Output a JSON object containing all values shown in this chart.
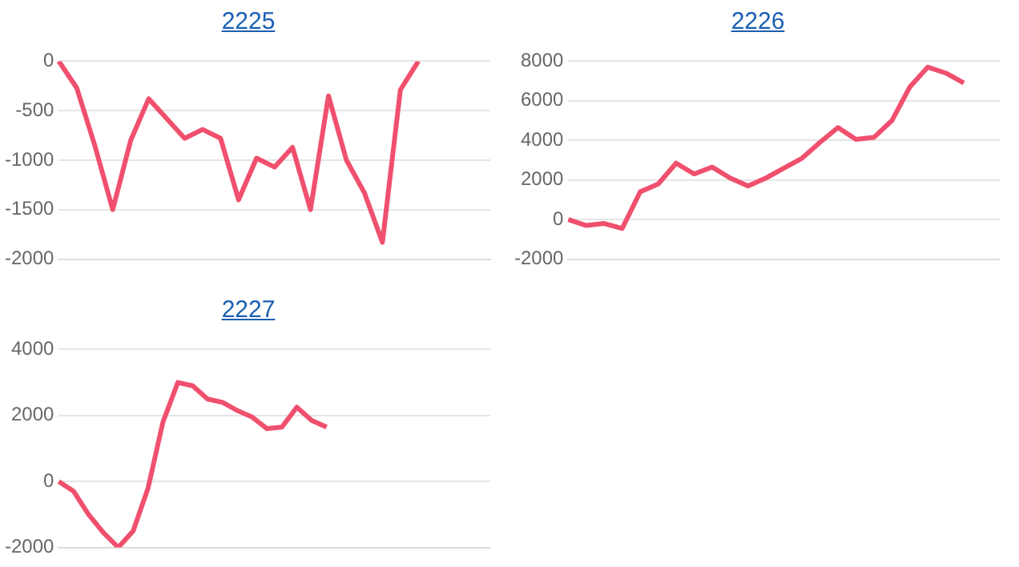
{
  "chart_data": [
    {
      "type": "line",
      "title": "2225",
      "categories": [
        null,
        null,
        null,
        null,
        null,
        null,
        null,
        null,
        null,
        null,
        null,
        null,
        null,
        null,
        null,
        null,
        null,
        null,
        null,
        null,
        null,
        null,
        null,
        null,
        null
      ],
      "series": [
        {
          "color": "#f0506e",
          "values": [
            0,
            -270,
            -850,
            -1500,
            -800,
            -380,
            -580,
            -780,
            -690,
            -780,
            -1400,
            -980,
            -1070,
            -870,
            -1500,
            -350,
            -1000,
            -1330,
            -1830,
            -290,
            0,
            null,
            null,
            null,
            null
          ]
        }
      ],
      "ylim": [
        -2000,
        0
      ],
      "yticks": [
        -2000,
        -1500,
        -1000,
        -500,
        0
      ],
      "grid": "y",
      "tick_labels": "y"
    },
    {
      "type": "line",
      "title": "2226",
      "categories": [
        null,
        null,
        null,
        null,
        null,
        null,
        null,
        null,
        null,
        null,
        null,
        null,
        null,
        null,
        null,
        null,
        null,
        null,
        null,
        null,
        null,
        null,
        null,
        null,
        null
      ],
      "series": [
        {
          "color": "#f0506e",
          "values": [
            0,
            -300,
            -200,
            -450,
            1400,
            1800,
            2850,
            2300,
            2650,
            2100,
            1700,
            2100,
            2600,
            3100,
            3900,
            4650,
            4050,
            4150,
            5000,
            6700,
            7700,
            7400,
            6900,
            null,
            null
          ]
        }
      ],
      "ylim": [
        -2000,
        8000
      ],
      "yticks": [
        -2000,
        0,
        2000,
        4000,
        6000,
        8000
      ],
      "grid": "y",
      "tick_labels": "y"
    },
    {
      "type": "line",
      "title": "2227",
      "categories": [
        null,
        null,
        null,
        null,
        null,
        null,
        null,
        null,
        null,
        null,
        null,
        null,
        null,
        null,
        null,
        null,
        null,
        null,
        null,
        null,
        null,
        null,
        null,
        null,
        null,
        null,
        null,
        null,
        null,
        null
      ],
      "series": [
        {
          "color": "#f0506e",
          "values": [
            0,
            -300,
            -1000,
            -1550,
            -2000,
            -1500,
            -200,
            1800,
            3000,
            2900,
            2500,
            2400,
            2150,
            1950,
            1600,
            1650,
            2250,
            1850,
            1650,
            null,
            null,
            null,
            null,
            null,
            null,
            null,
            null,
            null,
            null,
            null
          ]
        }
      ],
      "ylim": [
        -2000,
        4000
      ],
      "yticks": [
        -2000,
        0,
        2000,
        4000
      ],
      "grid": "y",
      "tick_labels": "y"
    }
  ]
}
